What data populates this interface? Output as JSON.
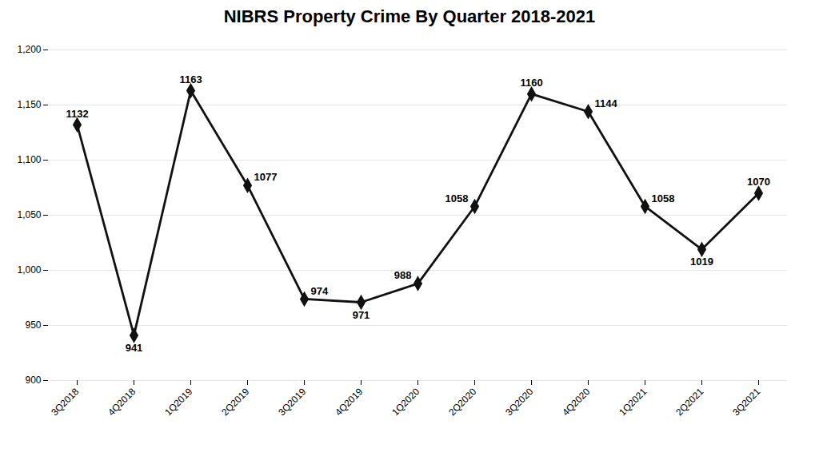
{
  "chart_data": {
    "type": "line",
    "title": "NIBRS Property Crime By Quarter 2018-2021",
    "categories": [
      "3Q2018",
      "4Q2018",
      "1Q2019",
      "2Q2019",
      "3Q2019",
      "4Q2019",
      "1Q2020",
      "2Q2020",
      "3Q2020",
      "4Q2020",
      "1Q2021",
      "2Q2021",
      "3Q2021"
    ],
    "values": [
      1132,
      941,
      1163,
      1077,
      974,
      971,
      988,
      1058,
      1160,
      1144,
      1058,
      1019,
      1070
    ],
    "color": "#111111",
    "marker": "diamond",
    "ylim": [
      900,
      1200
    ],
    "yticks": [
      900,
      950,
      1000,
      1050,
      1100,
      1150,
      1200
    ],
    "grid": true,
    "data_labels": true
  }
}
